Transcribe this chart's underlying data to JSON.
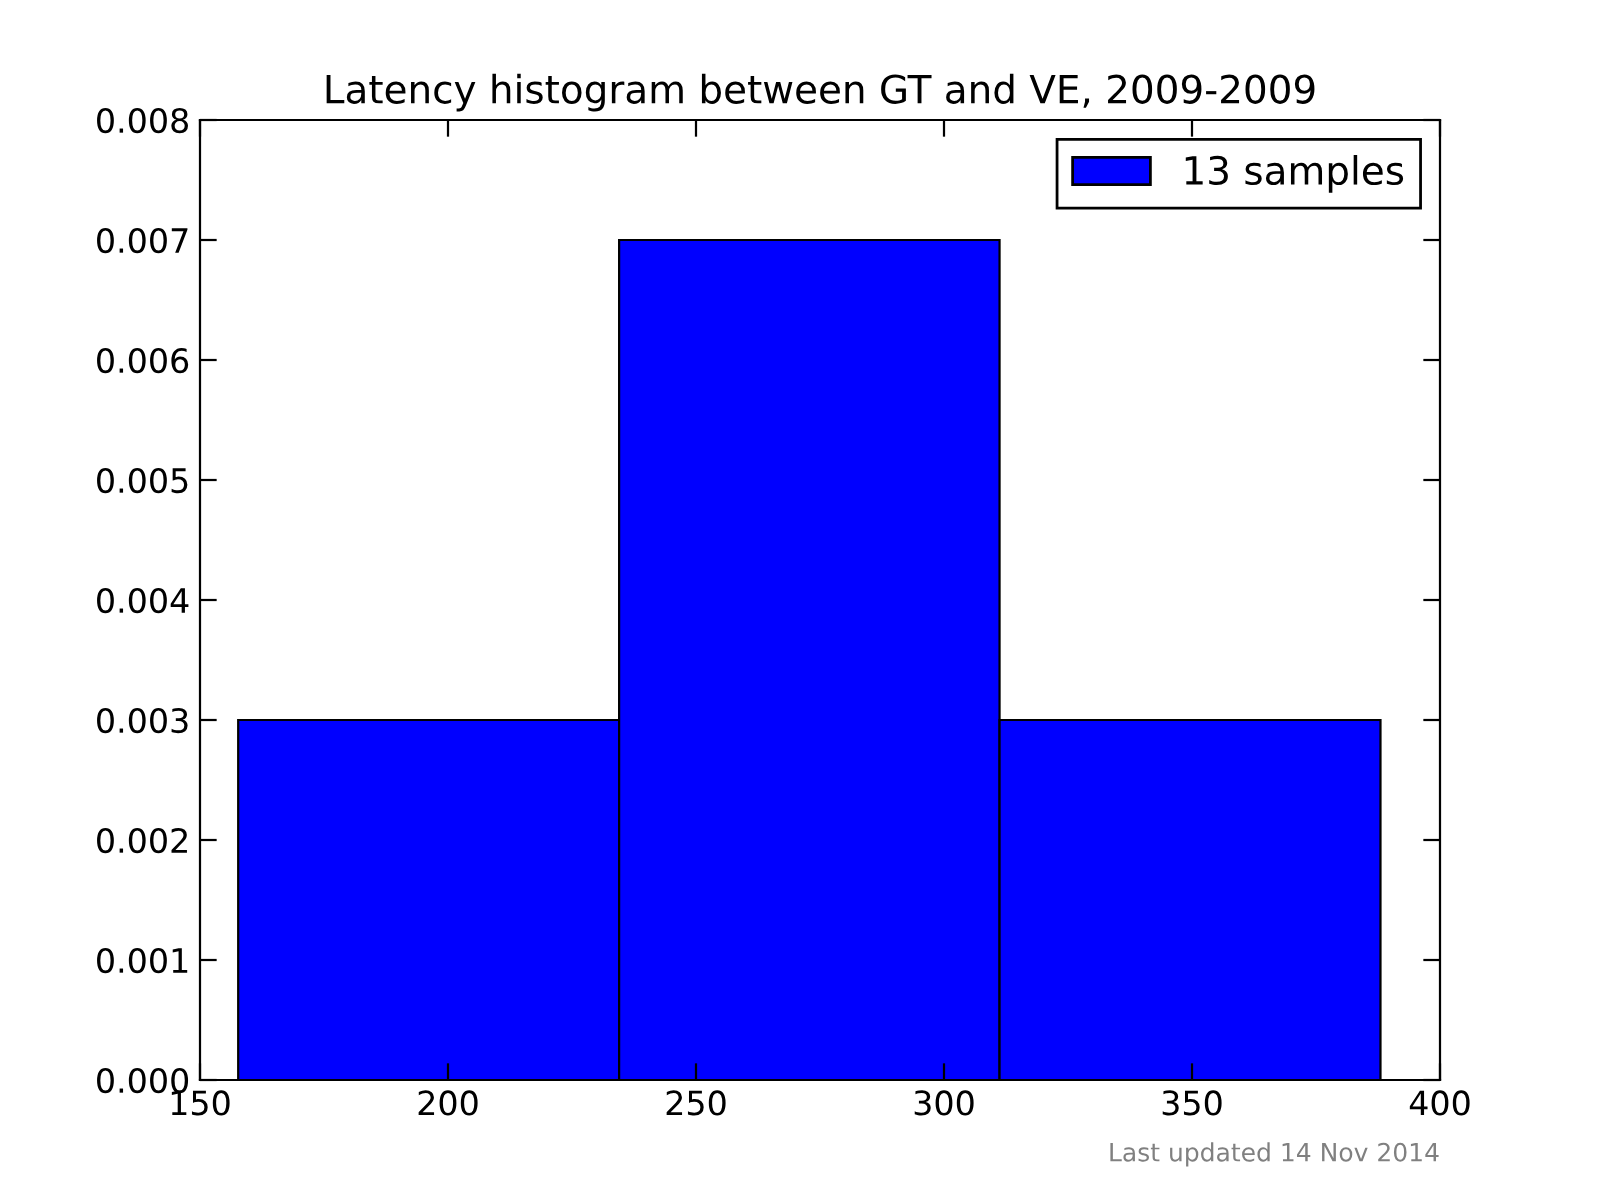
{
  "chart_data": {
    "type": "histogram",
    "title": "Latency histogram between GT and VE, 2009-2009",
    "bins": [
      157.7,
      234.5,
      311.2,
      388.0
    ],
    "series": [
      {
        "name": "13 samples",
        "color": "#0000ff",
        "values": [
          0.003,
          0.007,
          0.003
        ]
      }
    ],
    "xlim": [
      150,
      400
    ],
    "xticks": [
      150,
      200,
      250,
      300,
      350,
      400
    ],
    "ylim": [
      0,
      0.008
    ],
    "yticks": [
      {
        "value": 0,
        "label": "0.000"
      },
      {
        "value": 0.001,
        "label": "0.001"
      },
      {
        "value": 0.002,
        "label": "0.002"
      },
      {
        "value": 0.003,
        "label": "0.003"
      },
      {
        "value": 0.004,
        "label": "0.004"
      },
      {
        "value": 0.005,
        "label": "0.005"
      },
      {
        "value": 0.006,
        "label": "0.006"
      },
      {
        "value": 0.007,
        "label": "0.007"
      },
      {
        "value": 0.008,
        "label": "0.008"
      }
    ],
    "legend": "top right",
    "grid": false,
    "annotations": [
      "Last updated 14 Nov 2014"
    ]
  }
}
